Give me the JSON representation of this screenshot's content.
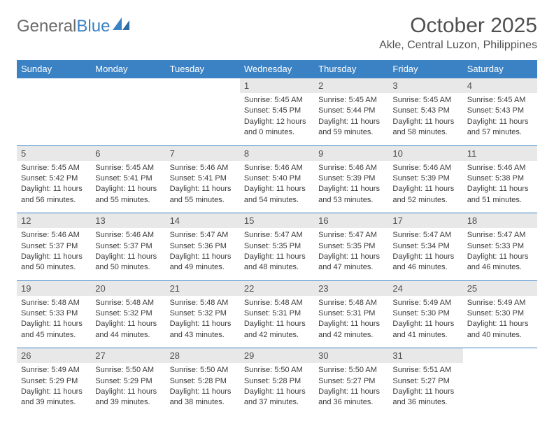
{
  "brand": {
    "part1": "General",
    "part2": "Blue"
  },
  "title": "October 2025",
  "location": "Akle, Central Luzon, Philippines",
  "colors": {
    "header_bg": "#3a82c4",
    "header_text": "#ffffff",
    "daynum_bg": "#e8e8e8",
    "text": "#3a3a3a",
    "border": "#3a82c4"
  },
  "day_labels": [
    "Sunday",
    "Monday",
    "Tuesday",
    "Wednesday",
    "Thursday",
    "Friday",
    "Saturday"
  ],
  "weeks": [
    [
      {
        "n": "",
        "sr": "",
        "ss": "",
        "dl": ""
      },
      {
        "n": "",
        "sr": "",
        "ss": "",
        "dl": ""
      },
      {
        "n": "",
        "sr": "",
        "ss": "",
        "dl": ""
      },
      {
        "n": "1",
        "sr": "Sunrise: 5:45 AM",
        "ss": "Sunset: 5:45 PM",
        "dl": "Daylight: 12 hours and 0 minutes."
      },
      {
        "n": "2",
        "sr": "Sunrise: 5:45 AM",
        "ss": "Sunset: 5:44 PM",
        "dl": "Daylight: 11 hours and 59 minutes."
      },
      {
        "n": "3",
        "sr": "Sunrise: 5:45 AM",
        "ss": "Sunset: 5:43 PM",
        "dl": "Daylight: 11 hours and 58 minutes."
      },
      {
        "n": "4",
        "sr": "Sunrise: 5:45 AM",
        "ss": "Sunset: 5:43 PM",
        "dl": "Daylight: 11 hours and 57 minutes."
      }
    ],
    [
      {
        "n": "5",
        "sr": "Sunrise: 5:45 AM",
        "ss": "Sunset: 5:42 PM",
        "dl": "Daylight: 11 hours and 56 minutes."
      },
      {
        "n": "6",
        "sr": "Sunrise: 5:45 AM",
        "ss": "Sunset: 5:41 PM",
        "dl": "Daylight: 11 hours and 55 minutes."
      },
      {
        "n": "7",
        "sr": "Sunrise: 5:46 AM",
        "ss": "Sunset: 5:41 PM",
        "dl": "Daylight: 11 hours and 55 minutes."
      },
      {
        "n": "8",
        "sr": "Sunrise: 5:46 AM",
        "ss": "Sunset: 5:40 PM",
        "dl": "Daylight: 11 hours and 54 minutes."
      },
      {
        "n": "9",
        "sr": "Sunrise: 5:46 AM",
        "ss": "Sunset: 5:39 PM",
        "dl": "Daylight: 11 hours and 53 minutes."
      },
      {
        "n": "10",
        "sr": "Sunrise: 5:46 AM",
        "ss": "Sunset: 5:39 PM",
        "dl": "Daylight: 11 hours and 52 minutes."
      },
      {
        "n": "11",
        "sr": "Sunrise: 5:46 AM",
        "ss": "Sunset: 5:38 PM",
        "dl": "Daylight: 11 hours and 51 minutes."
      }
    ],
    [
      {
        "n": "12",
        "sr": "Sunrise: 5:46 AM",
        "ss": "Sunset: 5:37 PM",
        "dl": "Daylight: 11 hours and 50 minutes."
      },
      {
        "n": "13",
        "sr": "Sunrise: 5:46 AM",
        "ss": "Sunset: 5:37 PM",
        "dl": "Daylight: 11 hours and 50 minutes."
      },
      {
        "n": "14",
        "sr": "Sunrise: 5:47 AM",
        "ss": "Sunset: 5:36 PM",
        "dl": "Daylight: 11 hours and 49 minutes."
      },
      {
        "n": "15",
        "sr": "Sunrise: 5:47 AM",
        "ss": "Sunset: 5:35 PM",
        "dl": "Daylight: 11 hours and 48 minutes."
      },
      {
        "n": "16",
        "sr": "Sunrise: 5:47 AM",
        "ss": "Sunset: 5:35 PM",
        "dl": "Daylight: 11 hours and 47 minutes."
      },
      {
        "n": "17",
        "sr": "Sunrise: 5:47 AM",
        "ss": "Sunset: 5:34 PM",
        "dl": "Daylight: 11 hours and 46 minutes."
      },
      {
        "n": "18",
        "sr": "Sunrise: 5:47 AM",
        "ss": "Sunset: 5:33 PM",
        "dl": "Daylight: 11 hours and 46 minutes."
      }
    ],
    [
      {
        "n": "19",
        "sr": "Sunrise: 5:48 AM",
        "ss": "Sunset: 5:33 PM",
        "dl": "Daylight: 11 hours and 45 minutes."
      },
      {
        "n": "20",
        "sr": "Sunrise: 5:48 AM",
        "ss": "Sunset: 5:32 PM",
        "dl": "Daylight: 11 hours and 44 minutes."
      },
      {
        "n": "21",
        "sr": "Sunrise: 5:48 AM",
        "ss": "Sunset: 5:32 PM",
        "dl": "Daylight: 11 hours and 43 minutes."
      },
      {
        "n": "22",
        "sr": "Sunrise: 5:48 AM",
        "ss": "Sunset: 5:31 PM",
        "dl": "Daylight: 11 hours and 42 minutes."
      },
      {
        "n": "23",
        "sr": "Sunrise: 5:48 AM",
        "ss": "Sunset: 5:31 PM",
        "dl": "Daylight: 11 hours and 42 minutes."
      },
      {
        "n": "24",
        "sr": "Sunrise: 5:49 AM",
        "ss": "Sunset: 5:30 PM",
        "dl": "Daylight: 11 hours and 41 minutes."
      },
      {
        "n": "25",
        "sr": "Sunrise: 5:49 AM",
        "ss": "Sunset: 5:30 PM",
        "dl": "Daylight: 11 hours and 40 minutes."
      }
    ],
    [
      {
        "n": "26",
        "sr": "Sunrise: 5:49 AM",
        "ss": "Sunset: 5:29 PM",
        "dl": "Daylight: 11 hours and 39 minutes."
      },
      {
        "n": "27",
        "sr": "Sunrise: 5:50 AM",
        "ss": "Sunset: 5:29 PM",
        "dl": "Daylight: 11 hours and 39 minutes."
      },
      {
        "n": "28",
        "sr": "Sunrise: 5:50 AM",
        "ss": "Sunset: 5:28 PM",
        "dl": "Daylight: 11 hours and 38 minutes."
      },
      {
        "n": "29",
        "sr": "Sunrise: 5:50 AM",
        "ss": "Sunset: 5:28 PM",
        "dl": "Daylight: 11 hours and 37 minutes."
      },
      {
        "n": "30",
        "sr": "Sunrise: 5:50 AM",
        "ss": "Sunset: 5:27 PM",
        "dl": "Daylight: 11 hours and 36 minutes."
      },
      {
        "n": "31",
        "sr": "Sunrise: 5:51 AM",
        "ss": "Sunset: 5:27 PM",
        "dl": "Daylight: 11 hours and 36 minutes."
      },
      {
        "n": "",
        "sr": "",
        "ss": "",
        "dl": ""
      }
    ]
  ]
}
